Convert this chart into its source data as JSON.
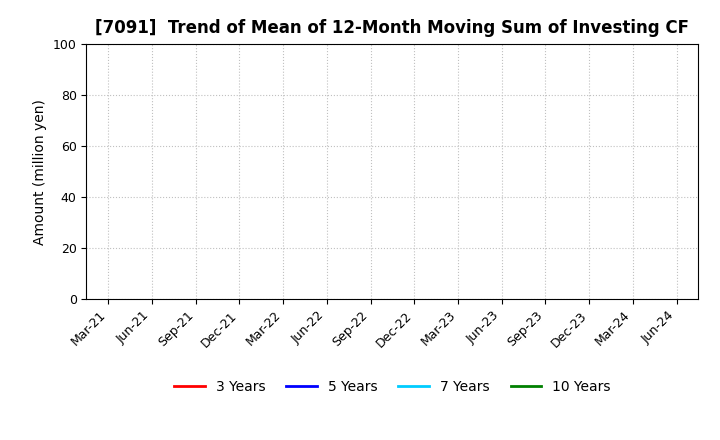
{
  "title": "[7091]  Trend of Mean of 12-Month Moving Sum of Investing CF",
  "ylabel": "Amount (million yen)",
  "ylim": [
    0,
    100
  ],
  "yticks": [
    0,
    20,
    40,
    60,
    80,
    100
  ],
  "x_tick_labels": [
    "Mar-21",
    "Jun-21",
    "Sep-21",
    "Dec-21",
    "Mar-22",
    "Jun-22",
    "Sep-22",
    "Dec-22",
    "Mar-23",
    "Jun-23",
    "Sep-23",
    "Dec-23",
    "Mar-24",
    "Jun-24"
  ],
  "legend_entries": [
    "3 Years",
    "5 Years",
    "7 Years",
    "10 Years"
  ],
  "legend_colors": [
    "#ff0000",
    "#0000ff",
    "#00ccff",
    "#008000"
  ],
  "background_color": "#ffffff",
  "grid_color": "#c0c0c0",
  "title_fontsize": 12,
  "axis_fontsize": 10,
  "tick_fontsize": 9
}
